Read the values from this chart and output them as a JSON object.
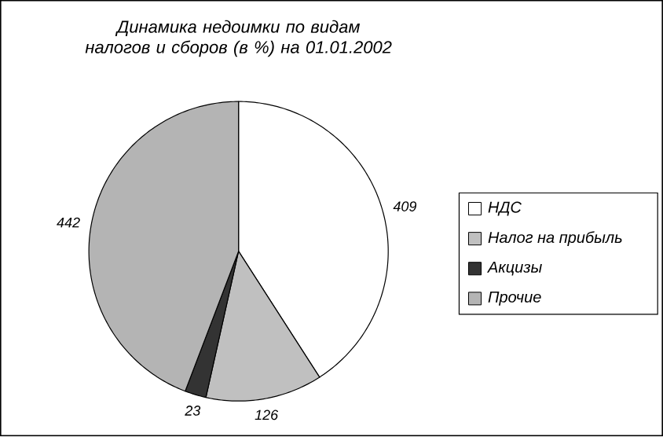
{
  "chart_data": {
    "type": "pie",
    "title": "Динамика недоимки по видам налогов и сборов (в %) на 01.01.2002",
    "categories": [
      "НДС",
      "Налог на прибыль",
      "Акцизы",
      "Прочие"
    ],
    "values": [
      409,
      126,
      23,
      442
    ],
    "colors": [
      "#ffffff",
      "#c0c0c0",
      "#333333",
      "#b4b4b4"
    ],
    "data_labels": true,
    "legend": "right"
  }
}
